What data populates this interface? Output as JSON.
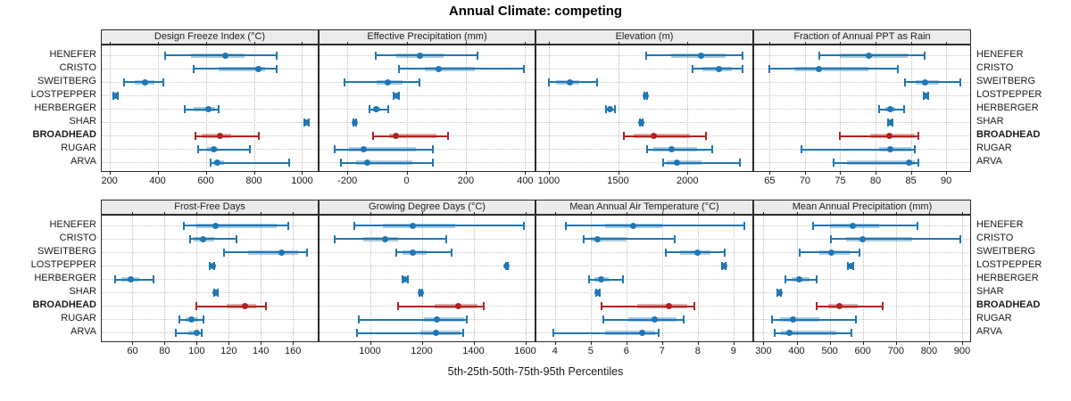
{
  "title": "Annual Climate: competing",
  "xlabel": "5th-25th-50th-75th-95th Percentiles",
  "sites": [
    "HENEFER",
    "CRISTO",
    "SWEITBERG",
    "LOSTPEPPER",
    "HERBERGER",
    "SHAR",
    "BROADHEAD",
    "RUGAR",
    "ARVA"
  ],
  "highlight_site": "BROADHEAD",
  "percentile_labels": [
    "5th",
    "25th",
    "50th",
    "75th",
    "95th"
  ],
  "colors": {
    "series_blue": "#1F77B4",
    "highlight_red": "#B22222",
    "strip_bg": "#EBEBEB",
    "panel_border": "#2B2B2B",
    "grid": "#BDBDBD",
    "text": "#1A1A1A"
  },
  "chart_data": {
    "type": "scatter",
    "subtype": "percentile-dot-whisker-trellis",
    "title": "Annual Climate: competing",
    "xlabel": "5th-25th-50th-75th-95th Percentiles",
    "legend_position": "none",
    "grid": "dotted",
    "row_labels_both_sides": true,
    "panels": [
      {
        "title": "Design Freeze Index (°C)",
        "row": 0,
        "col": 0,
        "xlim": [
          168,
          1065
        ],
        "ticks": [
          200,
          400,
          600,
          800,
          1000
        ],
        "values": [
          [
            430,
            540,
            680,
            760,
            895
          ],
          [
            550,
            655,
            820,
            845,
            895
          ],
          [
            260,
            305,
            348,
            385,
            422
          ],
          [
            215,
            220,
            224,
            228,
            233
          ],
          [
            514,
            551,
            612,
            637,
            655
          ],
          [
            1008,
            1014,
            1019,
            1023,
            1028
          ],
          [
            557,
            582,
            658,
            705,
            822
          ],
          [
            569,
            606,
            634,
            649,
            785
          ],
          [
            619,
            631,
            647,
            674,
            945
          ]
        ]
      },
      {
        "title": "Effective Precipitation (mm)",
        "row": 0,
        "col": 1,
        "xlim": [
          -294,
          432
        ],
        "ticks": [
          -200,
          0,
          200,
          400
        ],
        "values": [
          [
            -105,
            -35,
            45,
            125,
            240
          ],
          [
            -27,
            60,
            107,
            230,
            395
          ],
          [
            -211,
            -100,
            -64,
            -15,
            42
          ],
          [
            -45,
            -39,
            -34,
            -30,
            -25
          ],
          [
            -126,
            -112,
            -102,
            -88,
            -62
          ],
          [
            -181,
            -178,
            -176,
            -174,
            -171
          ],
          [
            -112,
            -60,
            -37,
            100,
            141
          ],
          [
            -242,
            -195,
            -146,
            30,
            89
          ],
          [
            -221,
            -170,
            -134,
            20,
            89
          ]
        ]
      },
      {
        "title": "Elevation (m)",
        "row": 0,
        "col": 2,
        "xlim": [
          911,
          2468
        ],
        "ticks": [
          1000,
          1500,
          2000
        ],
        "values": [
          [
            1700,
            1880,
            2100,
            2274,
            2400
          ],
          [
            2035,
            2105,
            2225,
            2317,
            2400
          ],
          [
            1000,
            1050,
            1155,
            1220,
            1350
          ],
          [
            1692,
            1696,
            1700,
            1704,
            1708
          ],
          [
            1411,
            1430,
            1443,
            1458,
            1475
          ],
          [
            1660,
            1664,
            1667,
            1670,
            1674
          ],
          [
            1543,
            1613,
            1758,
            2018,
            2131
          ],
          [
            1709,
            1752,
            1884,
            2072,
            2178
          ],
          [
            1826,
            1848,
            1922,
            2104,
            2376
          ]
        ]
      },
      {
        "title": "Fraction of Annual PPT as Rain",
        "row": 0,
        "col": 3,
        "xlim": [
          62.8,
          93.4
        ],
        "ticks": [
          65,
          70,
          75,
          80,
          85,
          90
        ],
        "values": [
          [
            72,
            75,
            79,
            84.5,
            87
          ],
          [
            65,
            68.5,
            72,
            79,
            83.2
          ],
          [
            84.2,
            85.7,
            87,
            89,
            92
          ],
          [
            86.8,
            87,
            87.1,
            87.3,
            87.5
          ],
          [
            80.5,
            81.4,
            82.1,
            82.8,
            84
          ],
          [
            81.8,
            82,
            82.1,
            82.25,
            82.4
          ],
          [
            75,
            79.3,
            82,
            85.5,
            86.1
          ],
          [
            69.5,
            80.5,
            82.1,
            85,
            85.6
          ],
          [
            74,
            76,
            84.7,
            85.5,
            86.1
          ]
        ]
      },
      {
        "title": "Frost-Free Days",
        "row": 1,
        "col": 0,
        "xlim": [
          40.8,
          175.5
        ],
        "ticks": [
          60,
          80,
          100,
          120,
          140,
          160
        ],
        "values": [
          [
            92,
            100,
            112,
            150,
            157
          ],
          [
            96,
            98,
            104,
            111,
            125
          ],
          [
            117,
            132,
            153,
            163,
            169
          ],
          [
            108,
            109,
            110,
            110.5,
            111
          ],
          [
            49,
            53,
            59,
            64,
            73
          ],
          [
            111,
            111.5,
            112,
            112.5,
            113
          ],
          [
            100,
            119,
            130,
            137,
            143
          ],
          [
            89,
            93,
            97,
            101,
            104
          ],
          [
            87,
            95,
            100,
            101.5,
            103
          ]
        ]
      },
      {
        "title": "Growing Degree Days (°C)",
        "row": 1,
        "col": 1,
        "xlim": [
          805,
          1636
        ],
        "ticks": [
          1000,
          1200,
          1400,
          1600
        ],
        "values": [
          [
            940,
            1050,
            1165,
            1330,
            1595
          ],
          [
            865,
            975,
            1060,
            1110,
            1295
          ],
          [
            1100,
            1125,
            1165,
            1220,
            1315
          ],
          [
            1524,
            1526,
            1528,
            1530,
            1532
          ],
          [
            1125,
            1130,
            1135,
            1140,
            1148
          ],
          [
            1192,
            1195,
            1197,
            1199,
            1202
          ],
          [
            1110,
            1250,
            1340,
            1415,
            1440
          ],
          [
            955,
            1210,
            1260,
            1365,
            1375
          ],
          [
            950,
            1195,
            1255,
            1350,
            1360
          ]
        ]
      },
      {
        "title": "Mean Annual Air Temperature (°C)",
        "row": 1,
        "col": 2,
        "xlim": [
          3.48,
          9.53
        ],
        "ticks": [
          4,
          5,
          6,
          7,
          8,
          9
        ],
        "values": [
          [
            4.3,
            5.4,
            6.2,
            7.0,
            9.3
          ],
          [
            4.8,
            5.0,
            5.2,
            6.0,
            7.35
          ],
          [
            7.1,
            7.5,
            8.0,
            8.35,
            8.75
          ],
          [
            8.68,
            8.71,
            8.73,
            8.75,
            8.78
          ],
          [
            4.95,
            5.1,
            5.3,
            5.5,
            5.9
          ],
          [
            5.15,
            5.18,
            5.2,
            5.22,
            5.25
          ],
          [
            5.3,
            6.3,
            7.2,
            7.7,
            7.9
          ],
          [
            5.35,
            6.05,
            6.8,
            7.4,
            7.6
          ],
          [
            3.95,
            5.4,
            6.45,
            6.8,
            6.9
          ]
        ]
      },
      {
        "title": "Mean Annual Precipitation (mm)",
        "row": 1,
        "col": 3,
        "xlim": [
          272,
          924
        ],
        "ticks": [
          300,
          400,
          500,
          600,
          700,
          800,
          900
        ],
        "values": [
          [
            450,
            500,
            570,
            650,
            765
          ],
          [
            505,
            550,
            600,
            750,
            895
          ],
          [
            410,
            470,
            505,
            560,
            590
          ],
          [
            556,
            560,
            564,
            568,
            572
          ],
          [
            365,
            386,
            409,
            440,
            460
          ],
          [
            343,
            346,
            348,
            351,
            354
          ],
          [
            460,
            495,
            530,
            585,
            660
          ],
          [
            325,
            350,
            390,
            470,
            578
          ],
          [
            335,
            352,
            378,
            520,
            565
          ]
        ]
      }
    ]
  }
}
